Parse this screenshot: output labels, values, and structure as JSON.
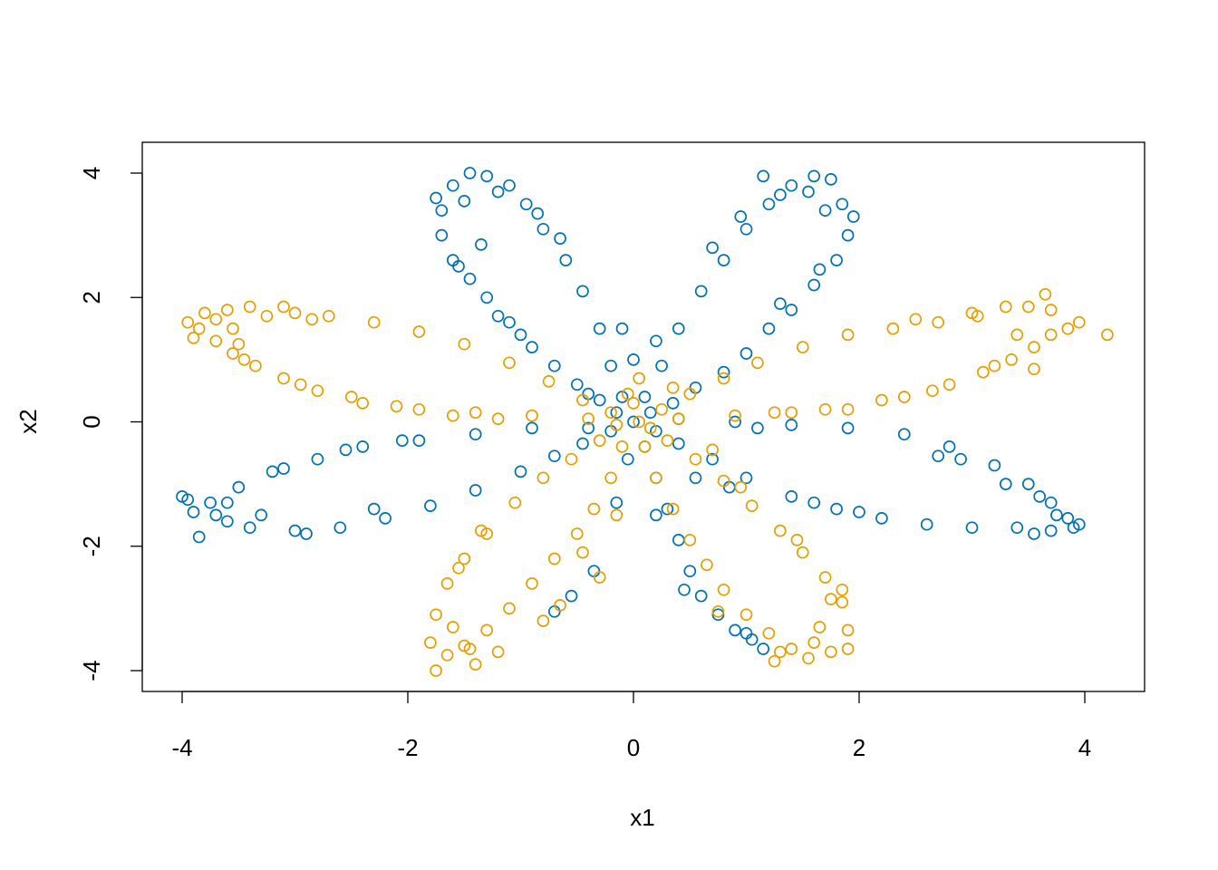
{
  "chart_data": {
    "type": "scatter",
    "title": "",
    "xlabel": "x1",
    "ylabel": "x2",
    "xlim": [
      -4.25,
      4.25
    ],
    "ylim": [
      -4.4,
      4.45
    ],
    "x_ticks": [
      -4,
      -2,
      0,
      2,
      4
    ],
    "y_ticks": [
      -4,
      -2,
      0,
      2,
      4
    ],
    "x_tick_labels": [
      "-4",
      "-2",
      "0",
      "2",
      "4"
    ],
    "y_tick_labels": [
      "-4",
      "-2",
      "0",
      "2",
      "4"
    ],
    "grid": false,
    "legend": "none",
    "marker": "open-circle",
    "series": [
      {
        "color": "#0072B2",
        "points": [
          [
            0.0,
            0.0
          ],
          [
            -0.1,
            0.4
          ],
          [
            -0.2,
            0.9
          ],
          [
            -0.3,
            1.5
          ],
          [
            -0.45,
            2.1
          ],
          [
            -0.6,
            2.6
          ],
          [
            -0.8,
            3.1
          ],
          [
            -0.95,
            3.5
          ],
          [
            -1.1,
            3.8
          ],
          [
            -1.3,
            3.95
          ],
          [
            -1.45,
            4.0
          ],
          [
            -1.6,
            3.8
          ],
          [
            -1.7,
            3.4
          ],
          [
            -1.7,
            3.0
          ],
          [
            -1.6,
            2.6
          ],
          [
            -1.45,
            2.3
          ],
          [
            -1.3,
            2.0
          ],
          [
            -1.1,
            1.6
          ],
          [
            -0.9,
            1.2
          ],
          [
            -0.7,
            0.9
          ],
          [
            -0.5,
            0.6
          ],
          [
            -0.3,
            0.35
          ],
          [
            -0.15,
            0.15
          ],
          [
            -1.5,
            3.55
          ],
          [
            -1.2,
            3.7
          ],
          [
            -0.85,
            3.35
          ],
          [
            -0.65,
            2.95
          ],
          [
            -1.35,
            2.85
          ],
          [
            -1.55,
            2.5
          ],
          [
            -1.2,
            1.7
          ],
          [
            -1.0,
            1.4
          ],
          [
            -0.4,
            0.45
          ],
          [
            -1.75,
            3.6
          ],
          [
            0.1,
            0.4
          ],
          [
            0.25,
            0.9
          ],
          [
            0.4,
            1.5
          ],
          [
            0.6,
            2.1
          ],
          [
            0.8,
            2.6
          ],
          [
            1.0,
            3.1
          ],
          [
            1.2,
            3.5
          ],
          [
            1.4,
            3.8
          ],
          [
            1.6,
            3.95
          ],
          [
            1.75,
            3.9
          ],
          [
            1.85,
            3.5
          ],
          [
            1.9,
            3.0
          ],
          [
            1.8,
            2.6
          ],
          [
            1.6,
            2.2
          ],
          [
            1.4,
            1.8
          ],
          [
            1.2,
            1.5
          ],
          [
            1.0,
            1.1
          ],
          [
            0.8,
            0.8
          ],
          [
            0.55,
            0.55
          ],
          [
            0.35,
            0.3
          ],
          [
            0.15,
            0.15
          ],
          [
            1.3,
            3.65
          ],
          [
            1.55,
            3.7
          ],
          [
            1.7,
            3.4
          ],
          [
            1.65,
            2.45
          ],
          [
            1.3,
            1.9
          ],
          [
            0.95,
            3.3
          ],
          [
            0.7,
            2.8
          ],
          [
            1.15,
            3.95
          ],
          [
            1.95,
            3.3
          ],
          [
            0.2,
            1.3
          ],
          [
            0.0,
            1.0
          ],
          [
            -0.1,
            1.5
          ],
          [
            0.4,
            0.05
          ],
          [
            0.9,
            0.0
          ],
          [
            1.4,
            -0.05
          ],
          [
            1.9,
            -0.1
          ],
          [
            2.4,
            -0.2
          ],
          [
            2.8,
            -0.4
          ],
          [
            3.2,
            -0.7
          ],
          [
            3.5,
            -1.0
          ],
          [
            3.7,
            -1.3
          ],
          [
            3.85,
            -1.55
          ],
          [
            3.9,
            -1.7
          ],
          [
            3.7,
            -1.75
          ],
          [
            3.4,
            -1.7
          ],
          [
            3.0,
            -1.7
          ],
          [
            2.6,
            -1.65
          ],
          [
            2.2,
            -1.55
          ],
          [
            1.8,
            -1.4
          ],
          [
            1.4,
            -1.2
          ],
          [
            1.0,
            -0.9
          ],
          [
            0.7,
            -0.6
          ],
          [
            0.4,
            -0.35
          ],
          [
            0.2,
            -0.15
          ],
          [
            3.6,
            -1.2
          ],
          [
            3.3,
            -1.0
          ],
          [
            2.9,
            -0.6
          ],
          [
            3.75,
            -1.5
          ],
          [
            3.55,
            -1.8
          ],
          [
            2.0,
            -1.45
          ],
          [
            1.6,
            -1.3
          ],
          [
            3.95,
            -1.65
          ],
          [
            2.7,
            -0.55
          ],
          [
            1.1,
            -0.1
          ],
          [
            -0.4,
            -0.1
          ],
          [
            -0.9,
            -0.1
          ],
          [
            -1.4,
            -0.2
          ],
          [
            -1.9,
            -0.3
          ],
          [
            -2.4,
            -0.4
          ],
          [
            -2.8,
            -0.6
          ],
          [
            -3.2,
            -0.8
          ],
          [
            -3.5,
            -1.05
          ],
          [
            -3.75,
            -1.3
          ],
          [
            -3.9,
            -1.45
          ],
          [
            -3.95,
            -1.25
          ],
          [
            -3.7,
            -1.5
          ],
          [
            -3.4,
            -1.7
          ],
          [
            -3.0,
            -1.75
          ],
          [
            -2.6,
            -1.7
          ],
          [
            -2.2,
            -1.55
          ],
          [
            -1.8,
            -1.35
          ],
          [
            -1.4,
            -1.1
          ],
          [
            -1.0,
            -0.8
          ],
          [
            -0.7,
            -0.55
          ],
          [
            -0.45,
            -0.35
          ],
          [
            -0.2,
            -0.15
          ],
          [
            -3.6,
            -1.6
          ],
          [
            -3.85,
            -1.85
          ],
          [
            -3.3,
            -1.5
          ],
          [
            -2.9,
            -1.8
          ],
          [
            -2.3,
            -1.4
          ],
          [
            -2.55,
            -0.45
          ],
          [
            -2.05,
            -0.3
          ],
          [
            -3.1,
            -0.75
          ],
          [
            -3.6,
            -1.3
          ],
          [
            -4.0,
            -1.2
          ],
          [
            0.1,
            -0.4
          ],
          [
            0.2,
            -0.9
          ],
          [
            0.3,
            -1.4
          ],
          [
            0.4,
            -1.9
          ],
          [
            0.5,
            -2.4
          ],
          [
            0.6,
            -2.8
          ],
          [
            0.75,
            -3.1
          ],
          [
            0.9,
            -3.35
          ],
          [
            1.05,
            -3.5
          ],
          [
            1.15,
            -3.65
          ],
          [
            -0.05,
            -0.6
          ],
          [
            -0.15,
            -1.3
          ],
          [
            -0.35,
            -2.4
          ],
          [
            -0.55,
            -2.8
          ],
          [
            -0.7,
            -3.05
          ],
          [
            0.45,
            -2.7
          ],
          [
            0.2,
            -1.5
          ],
          [
            0.55,
            -0.9
          ],
          [
            0.85,
            -1.05
          ],
          [
            1.0,
            -3.4
          ]
        ]
      },
      {
        "color": "#E69F00",
        "points": [
          [
            -0.4,
            0.05
          ],
          [
            -0.9,
            0.1
          ],
          [
            -1.4,
            0.15
          ],
          [
            -1.9,
            0.2
          ],
          [
            -2.4,
            0.3
          ],
          [
            -2.8,
            0.5
          ],
          [
            -3.1,
            0.7
          ],
          [
            -3.35,
            0.9
          ],
          [
            -3.55,
            1.1
          ],
          [
            -3.7,
            1.3
          ],
          [
            -3.85,
            1.5
          ],
          [
            -3.95,
            1.6
          ],
          [
            -3.8,
            1.75
          ],
          [
            -3.6,
            1.8
          ],
          [
            -3.4,
            1.85
          ],
          [
            -3.1,
            1.85
          ],
          [
            -2.7,
            1.7
          ],
          [
            -2.3,
            1.6
          ],
          [
            -1.9,
            1.45
          ],
          [
            -1.5,
            1.25
          ],
          [
            -1.1,
            0.95
          ],
          [
            -0.75,
            0.65
          ],
          [
            -0.45,
            0.35
          ],
          [
            -0.2,
            0.15
          ],
          [
            -3.5,
            1.25
          ],
          [
            -3.25,
            1.7
          ],
          [
            -3.0,
            1.75
          ],
          [
            -3.45,
            1.0
          ],
          [
            -3.7,
            1.65
          ],
          [
            -2.95,
            0.6
          ],
          [
            -2.5,
            0.4
          ],
          [
            -2.1,
            0.25
          ],
          [
            -1.6,
            0.1
          ],
          [
            -1.2,
            0.05
          ],
          [
            -3.9,
            1.35
          ],
          [
            -3.55,
            1.5
          ],
          [
            -2.85,
            1.65
          ],
          [
            0.4,
            0.05
          ],
          [
            0.9,
            0.1
          ],
          [
            1.4,
            0.15
          ],
          [
            1.9,
            0.2
          ],
          [
            2.4,
            0.4
          ],
          [
            2.8,
            0.6
          ],
          [
            3.1,
            0.8
          ],
          [
            3.35,
            1.0
          ],
          [
            3.55,
            1.2
          ],
          [
            3.7,
            1.4
          ],
          [
            3.85,
            1.5
          ],
          [
            4.2,
            1.4
          ],
          [
            3.7,
            1.8
          ],
          [
            3.5,
            1.85
          ],
          [
            3.3,
            1.85
          ],
          [
            3.05,
            1.7
          ],
          [
            2.7,
            1.6
          ],
          [
            2.3,
            1.5
          ],
          [
            1.9,
            1.4
          ],
          [
            1.5,
            1.2
          ],
          [
            1.1,
            0.95
          ],
          [
            0.8,
            0.7
          ],
          [
            0.5,
            0.45
          ],
          [
            0.25,
            0.2
          ],
          [
            3.4,
            1.4
          ],
          [
            3.2,
            0.9
          ],
          [
            3.65,
            2.05
          ],
          [
            3.0,
            1.75
          ],
          [
            2.65,
            0.5
          ],
          [
            2.2,
            0.35
          ],
          [
            1.7,
            0.2
          ],
          [
            1.25,
            0.15
          ],
          [
            3.55,
            0.85
          ],
          [
            3.95,
            1.6
          ],
          [
            2.5,
            1.65
          ],
          [
            -0.1,
            -0.4
          ],
          [
            -0.2,
            -0.9
          ],
          [
            -0.35,
            -1.4
          ],
          [
            -0.5,
            -1.8
          ],
          [
            -0.7,
            -2.2
          ],
          [
            -0.9,
            -2.6
          ],
          [
            -1.1,
            -3.0
          ],
          [
            -1.3,
            -3.35
          ],
          [
            -1.5,
            -3.6
          ],
          [
            -1.65,
            -3.75
          ],
          [
            -1.8,
            -3.55
          ],
          [
            -1.75,
            -3.1
          ],
          [
            -1.65,
            -2.6
          ],
          [
            -1.5,
            -2.2
          ],
          [
            -1.3,
            -1.8
          ],
          [
            -1.05,
            -1.3
          ],
          [
            -0.8,
            -0.9
          ],
          [
            -0.55,
            -0.6
          ],
          [
            -0.3,
            -0.3
          ],
          [
            -1.4,
            -3.9
          ],
          [
            -1.2,
            -3.7
          ],
          [
            -1.55,
            -2.35
          ],
          [
            -1.6,
            -3.3
          ],
          [
            -1.75,
            -4.0
          ],
          [
            -0.3,
            -2.5
          ],
          [
            -0.45,
            -2.1
          ],
          [
            -0.65,
            -2.95
          ],
          [
            -0.8,
            -3.2
          ],
          [
            -1.45,
            -3.65
          ],
          [
            -1.35,
            -1.75
          ],
          [
            -0.15,
            -1.5
          ],
          [
            0.1,
            -0.4
          ],
          [
            0.2,
            -0.9
          ],
          [
            0.35,
            -1.4
          ],
          [
            0.5,
            -1.9
          ],
          [
            0.65,
            -2.3
          ],
          [
            0.8,
            -2.7
          ],
          [
            1.0,
            -3.1
          ],
          [
            1.2,
            -3.4
          ],
          [
            1.4,
            -3.65
          ],
          [
            1.55,
            -3.8
          ],
          [
            1.75,
            -3.7
          ],
          [
            1.9,
            -3.35
          ],
          [
            1.85,
            -2.9
          ],
          [
            1.7,
            -2.5
          ],
          [
            1.5,
            -2.1
          ],
          [
            1.3,
            -1.75
          ],
          [
            1.05,
            -1.35
          ],
          [
            0.8,
            -0.95
          ],
          [
            0.55,
            -0.6
          ],
          [
            0.3,
            -0.3
          ],
          [
            1.3,
            -3.7
          ],
          [
            1.6,
            -3.55
          ],
          [
            1.75,
            -2.85
          ],
          [
            1.45,
            -1.9
          ],
          [
            0.95,
            -1.05
          ],
          [
            0.7,
            -0.45
          ],
          [
            1.65,
            -3.3
          ],
          [
            1.9,
            -3.65
          ],
          [
            1.25,
            -3.85
          ],
          [
            0.75,
            -3.05
          ],
          [
            1.85,
            -2.7
          ],
          [
            0.0,
            0.3
          ],
          [
            0.05,
            0.7
          ],
          [
            -0.05,
            0.45
          ],
          [
            0.15,
            -0.1
          ],
          [
            -0.15,
            -0.05
          ],
          [
            0.35,
            0.55
          ],
          [
            0.05,
            0.0
          ]
        ]
      }
    ]
  }
}
